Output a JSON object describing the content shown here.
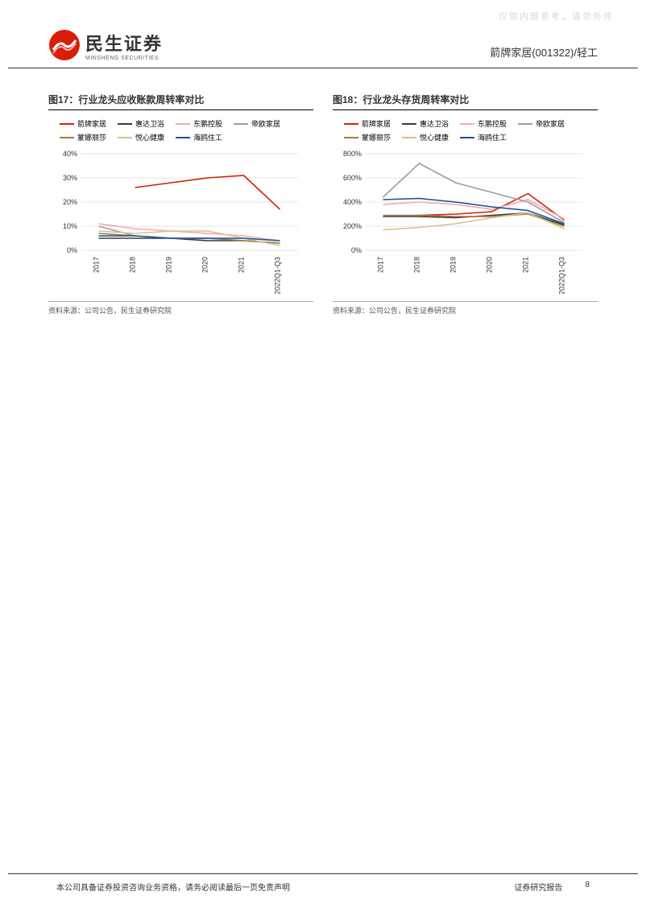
{
  "watermark": "仅供内部参考，请勿外传",
  "header": {
    "logo_cn": "民生证券",
    "logo_en": "MINSHENG SECURITIES",
    "breadcrumb": "箭牌家居(001322)/轻工"
  },
  "charts": [
    {
      "title": "图17：行业龙头应收账款周转率对比",
      "type": "line",
      "source": "资料来源：公司公告，民生证券研究院",
      "categories": [
        "2017",
        "2018",
        "2019",
        "2020",
        "2021",
        "2022Q1-Q3"
      ],
      "ylim": [
        0,
        40
      ],
      "ytick_step": 10,
      "ytick_suffix": "%",
      "background_color": "#ffffff",
      "grid_color": "#e5e5e5",
      "label_fontsize": 9,
      "series": [
        {
          "name": "箭牌家居",
          "color": "#d81e06",
          "values": [
            null,
            26,
            28,
            30,
            31,
            17
          ]
        },
        {
          "name": "惠达卫浴",
          "color": "#3a3a3a",
          "values": [
            5,
            5,
            5,
            4,
            4,
            3
          ]
        },
        {
          "name": "东鹏控股",
          "color": "#f4a9a9",
          "values": [
            11,
            9,
            8,
            7,
            6,
            4
          ]
        },
        {
          "name": "帝欧家居",
          "color": "#9e9e9e",
          "values": [
            10,
            6,
            5,
            5,
            4,
            3
          ]
        },
        {
          "name": "蒙娜丽莎",
          "color": "#a77b3b",
          "values": [
            7,
            6,
            5,
            5,
            4,
            3
          ]
        },
        {
          "name": "悦心健康",
          "color": "#d9c18a",
          "values": [
            8,
            7,
            8,
            8,
            5,
            2
          ]
        },
        {
          "name": "海鸥住工",
          "color": "#1b4f9c",
          "values": [
            6,
            6,
            5,
            5,
            5,
            4
          ]
        }
      ]
    },
    {
      "title": "图18：行业龙头存货周转率对比",
      "type": "line",
      "source": "资料来源：公司公告，民生证券研究院",
      "categories": [
        "2017",
        "2018",
        "2019",
        "2020",
        "2021",
        "2022Q1-Q3"
      ],
      "ylim": [
        0,
        800
      ],
      "ytick_step": 200,
      "ytick_suffix": "%",
      "background_color": "#ffffff",
      "grid_color": "#e5e5e5",
      "label_fontsize": 9,
      "series": [
        {
          "name": "箭牌家居",
          "color": "#d81e06",
          "values": [
            null,
            290,
            300,
            320,
            470,
            250
          ]
        },
        {
          "name": "惠达卫浴",
          "color": "#3a3a3a",
          "values": [
            280,
            280,
            270,
            290,
            310,
            210
          ]
        },
        {
          "name": "东鹏控股",
          "color": "#f4a9a9",
          "values": [
            380,
            400,
            380,
            340,
            420,
            260
          ]
        },
        {
          "name": "帝欧家居",
          "color": "#9e9e9e",
          "values": [
            440,
            720,
            560,
            480,
            400,
            230
          ]
        },
        {
          "name": "蒙娜丽莎",
          "color": "#a77b3b",
          "values": [
            290,
            290,
            280,
            280,
            300,
            200
          ]
        },
        {
          "name": "悦心健康",
          "color": "#d9c18a",
          "values": [
            170,
            190,
            220,
            270,
            310,
            180
          ]
        },
        {
          "name": "海鸥住工",
          "color": "#1b4f9c",
          "values": [
            420,
            430,
            400,
            360,
            330,
            220
          ]
        }
      ]
    }
  ],
  "footer": {
    "left": "本公司具备证券投资咨询业务资格，请务必阅读最后一页免责声明",
    "right_label": "证券研究报告",
    "page": "8"
  }
}
